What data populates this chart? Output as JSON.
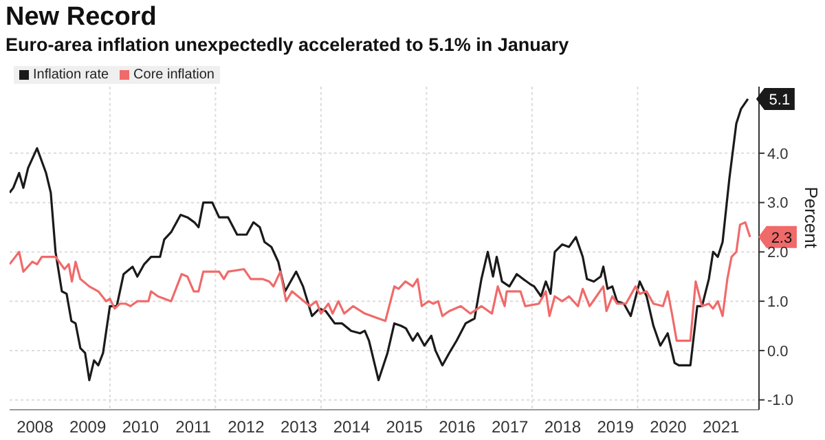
{
  "chart_data": {
    "type": "line",
    "title": "New Record",
    "subtitle": "Euro-area inflation unexpectedly accelerated to 5.1% in January",
    "ylabel": "Percent",
    "xlim": [
      2007.52,
      2021.72
    ],
    "ylim": [
      -1.2,
      5.35
    ],
    "xticks": [
      2008,
      2009,
      {
        "value": 2009.42,
        "label": null
      },
      2010,
      2011,
      {
        "value": 2011.42,
        "label": null
      },
      2012,
      2013,
      {
        "value": 2013.42,
        "label": null
      },
      2014,
      2015,
      {
        "value": 2015.42,
        "label": null
      },
      2016,
      2017,
      {
        "value": 2017.42,
        "label": null
      },
      2018,
      2019,
      {
        "value": 2019.42,
        "label": null
      },
      2020,
      2021
    ],
    "yticks": [
      {
        "value": -1,
        "label": "-1.0"
      },
      {
        "value": 0,
        "label": "0.0"
      },
      {
        "value": 1,
        "label": "1.0"
      },
      {
        "value": 2,
        "label": "2.0"
      },
      {
        "value": 3,
        "label": "3.0"
      },
      {
        "value": 4,
        "label": "4.0"
      }
    ],
    "grid": true,
    "legend": "top left",
    "annotations": [
      {
        "text": "5.1",
        "x": 2021.51,
        "y": 5.1
      },
      {
        "text": "2.3",
        "x": 2021.55,
        "y": 2.3
      }
    ],
    "series": [
      {
        "name": "Inflation rate",
        "color": "#1a1a1a",
        "x": [
          2007.52,
          2007.59,
          2007.7,
          2007.78,
          2007.87,
          2008.04,
          2008.21,
          2008.3,
          2008.39,
          2008.51,
          2008.6,
          2008.69,
          2008.77,
          2008.86,
          2008.95,
          2009.03,
          2009.12,
          2009.2,
          2009.29,
          2009.42,
          2009.55,
          2009.68,
          2009.85,
          2009.94,
          2010.07,
          2010.2,
          2010.37,
          2010.45,
          2010.58,
          2010.76,
          2010.89,
          2011.02,
          2011.1,
          2011.19,
          2011.36,
          2011.49,
          2011.66,
          2011.83,
          2012.01,
          2012.14,
          2012.26,
          2012.35,
          2012.48,
          2012.61,
          2012.74,
          2012.95,
          2013.08,
          2013.25,
          2013.39,
          2013.51,
          2013.68,
          2013.82,
          2013.99,
          2014.16,
          2014.25,
          2014.33,
          2014.51,
          2014.68,
          2014.81,
          2014.94,
          2015.03,
          2015.16,
          2015.25,
          2015.38,
          2015.51,
          2015.59,
          2015.72,
          2015.85,
          2015.99,
          2016.16,
          2016.33,
          2016.46,
          2016.58,
          2016.68,
          2016.75,
          2016.85,
          2016.99,
          2017.13,
          2017.25,
          2017.38,
          2017.46,
          2017.59,
          2017.68,
          2017.77,
          2017.85,
          2017.99,
          2018.12,
          2018.25,
          2018.38,
          2018.46,
          2018.59,
          2018.72,
          2018.77,
          2018.85,
          2018.94,
          2019.03,
          2019.16,
          2019.29,
          2019.46,
          2019.59,
          2019.72,
          2019.85,
          2019.99,
          2020.12,
          2020.2,
          2020.42,
          2020.55,
          2020.64,
          2020.77,
          2020.85,
          2020.94,
          2021.03,
          2021.16,
          2021.29,
          2021.38,
          2021.51
        ],
        "values": [
          3.2,
          3.3,
          3.6,
          3.3,
          3.7,
          4.1,
          3.6,
          3.2,
          2.0,
          1.2,
          1.15,
          0.6,
          0.55,
          0.05,
          -0.05,
          -0.6,
          -0.2,
          -0.3,
          -0.05,
          0.9,
          0.9,
          1.55,
          1.7,
          1.5,
          1.75,
          1.9,
          1.9,
          2.25,
          2.4,
          2.75,
          2.7,
          2.6,
          2.5,
          3.0,
          3.0,
          2.7,
          2.7,
          2.35,
          2.35,
          2.6,
          2.5,
          2.2,
          2.1,
          1.8,
          1.2,
          1.6,
          1.3,
          0.7,
          0.85,
          0.8,
          0.55,
          0.55,
          0.4,
          0.35,
          0.4,
          0.2,
          -0.6,
          -0.05,
          0.55,
          0.5,
          0.45,
          0.2,
          0.35,
          0.1,
          0.3,
          0.0,
          -0.3,
          -0.05,
          0.2,
          0.55,
          0.65,
          1.45,
          2.0,
          1.5,
          1.9,
          1.4,
          1.3,
          1.55,
          1.45,
          1.35,
          1.3,
          1.1,
          1.4,
          1.15,
          2.0,
          2.15,
          2.1,
          2.3,
          1.9,
          1.45,
          1.4,
          1.5,
          1.7,
          1.25,
          1.3,
          1.0,
          0.95,
          0.7,
          1.4,
          1.1,
          0.5,
          0.1,
          0.35,
          -0.25,
          -0.3,
          -0.3,
          0.9,
          0.9,
          1.45,
          2.0,
          1.9,
          2.2,
          3.5,
          4.6,
          4.9,
          5.1
        ]
      },
      {
        "name": "Core inflation",
        "color": "#f06a6a",
        "x": [
          2007.52,
          2007.7,
          2007.78,
          2007.95,
          2008.04,
          2008.13,
          2008.39,
          2008.56,
          2008.64,
          2008.7,
          2008.77,
          2008.86,
          2009.03,
          2009.2,
          2009.35,
          2009.42,
          2009.51,
          2009.61,
          2009.72,
          2009.81,
          2009.94,
          2010.15,
          2010.2,
          2010.33,
          2010.58,
          2010.78,
          2010.89,
          2011.01,
          2011.1,
          2011.19,
          2011.49,
          2011.58,
          2011.66,
          2011.96,
          2012.09,
          2012.31,
          2012.44,
          2012.52,
          2012.65,
          2012.76,
          2012.87,
          2013.04,
          2013.21,
          2013.33,
          2013.42,
          2013.56,
          2013.64,
          2013.75,
          2013.86,
          2014.03,
          2014.25,
          2014.51,
          2014.64,
          2014.81,
          2014.89,
          2015.02,
          2015.16,
          2015.25,
          2015.33,
          2015.46,
          2015.55,
          2015.64,
          2015.72,
          2015.85,
          2016.07,
          2016.25,
          2016.46,
          2016.66,
          2016.77,
          2016.9,
          2016.94,
          2017.2,
          2017.29,
          2017.55,
          2017.68,
          2017.75,
          2017.85,
          2017.99,
          2018.12,
          2018.29,
          2018.38,
          2018.51,
          2018.64,
          2018.77,
          2018.83,
          2018.94,
          2019.03,
          2019.2,
          2019.38,
          2019.46,
          2019.59,
          2019.72,
          2019.9,
          2019.99,
          2020.07,
          2020.16,
          2020.42,
          2020.52,
          2020.64,
          2020.77,
          2020.85,
          2020.94,
          2021.03,
          2021.12,
          2021.2,
          2021.29,
          2021.36,
          2021.46,
          2021.55
        ],
        "values": [
          1.75,
          2.0,
          1.6,
          1.8,
          1.75,
          1.9,
          1.9,
          1.65,
          1.75,
          1.4,
          1.8,
          1.45,
          1.3,
          1.2,
          1.0,
          1.05,
          0.85,
          0.95,
          0.95,
          0.9,
          1.0,
          1.0,
          1.2,
          1.1,
          1.0,
          1.55,
          1.5,
          1.2,
          1.2,
          1.6,
          1.6,
          1.45,
          1.6,
          1.65,
          1.45,
          1.45,
          1.4,
          1.3,
          1.6,
          1.0,
          1.2,
          1.05,
          0.9,
          1.0,
          0.75,
          0.95,
          0.75,
          1.0,
          0.75,
          0.9,
          0.75,
          0.65,
          0.6,
          1.3,
          1.25,
          1.4,
          1.3,
          1.45,
          0.9,
          1.0,
          0.95,
          1.0,
          0.7,
          0.8,
          0.9,
          0.75,
          0.9,
          0.75,
          1.3,
          0.9,
          1.2,
          1.2,
          0.9,
          0.95,
          1.2,
          0.7,
          1.1,
          1.0,
          1.1,
          0.9,
          1.25,
          0.9,
          1.1,
          1.3,
          0.8,
          1.1,
          0.95,
          0.95,
          1.3,
          1.15,
          1.2,
          0.95,
          0.9,
          1.2,
          0.75,
          0.2,
          0.2,
          1.4,
          0.9,
          0.95,
          0.85,
          1.0,
          0.7,
          1.45,
          1.9,
          2.0,
          2.55,
          2.6,
          2.3
        ]
      }
    ]
  }
}
